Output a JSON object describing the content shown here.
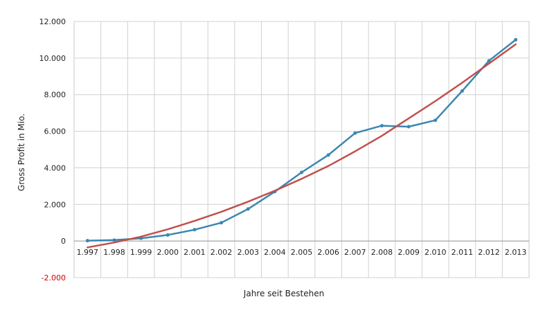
{
  "chart_data": {
    "type": "line",
    "title": "",
    "xlabel": "Jahre seit Bestehen",
    "ylabel": "Gross Profit in Mio.",
    "categories": [
      "1.997",
      "1.998",
      "1.999",
      "2.000",
      "2.001",
      "2.002",
      "2.003",
      "2.004",
      "2.005",
      "2.006",
      "2.007",
      "2.008",
      "2.009",
      "2.010",
      "2.011",
      "2.012",
      "2.013"
    ],
    "ylim": [
      -2000,
      12000
    ],
    "yticks": [
      {
        "value": 12000,
        "label": "12.000"
      },
      {
        "value": 10000,
        "label": "10.000"
      },
      {
        "value": 8000,
        "label": "8.000"
      },
      {
        "value": 6000,
        "label": "6.000"
      },
      {
        "value": 4000,
        "label": "4.000"
      },
      {
        "value": 2000,
        "label": "2.000"
      },
      {
        "value": 0,
        "label": "0"
      },
      {
        "value": -2000,
        "label": "-2.000"
      }
    ],
    "negative_tick_color": "#cc0000",
    "grid": true,
    "series": [
      {
        "color": "#3a87b0",
        "markers": true,
        "values": [
          20,
          50,
          150,
          330,
          620,
          1000,
          1750,
          2700,
          3750,
          4700,
          5900,
          6300,
          6250,
          6600,
          8200,
          9850,
          11000
        ]
      },
      {
        "color": "#c0504d",
        "markers": false,
        "values": [
          -350,
          -80,
          240,
          640,
          1100,
          1600,
          2150,
          2750,
          3400,
          4100,
          4900,
          5750,
          6700,
          7650,
          8650,
          9700,
          10750
        ]
      }
    ]
  }
}
